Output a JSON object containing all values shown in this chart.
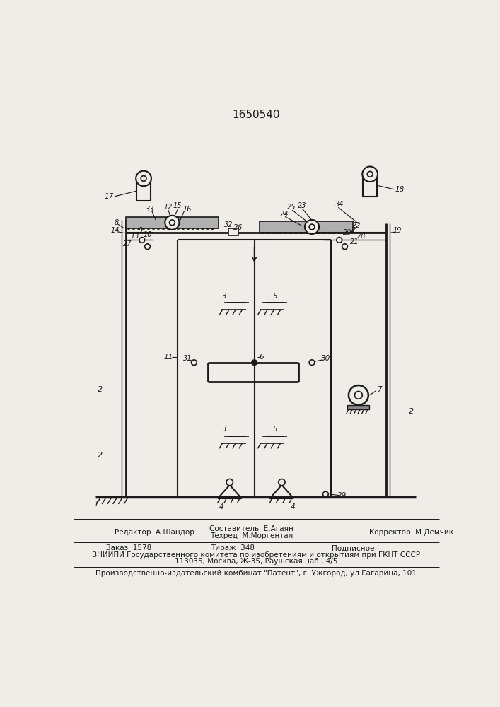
{
  "patent_number": "1650540",
  "background_color": "#f0ede8",
  "line_color": "#1a1a1a",
  "text_color": "#1a1a1a",
  "footer_line1_left": "Редактор  А.Шандор",
  "footer_line1_center_top": "Составитель  Е.Агаян",
  "footer_line1_center_bot": "Техред  М.Моргентал",
  "footer_line1_right": "Корректор  М.Демчик",
  "footer_line2a": "Заказ  1578",
  "footer_line2b": "Тираж  348",
  "footer_line2c": "Подписное",
  "footer_line3": "ВНИИПИ Государственного комитета по изобретениям и открытиям при ГКНТ СССР",
  "footer_line4": "113035, Москва, Ж-35, Раушская наб., 4/5",
  "footer_line5": "Производственно-издательский комбинат \"Патент\", г. Ужгород, ул.Гагарина, 101"
}
